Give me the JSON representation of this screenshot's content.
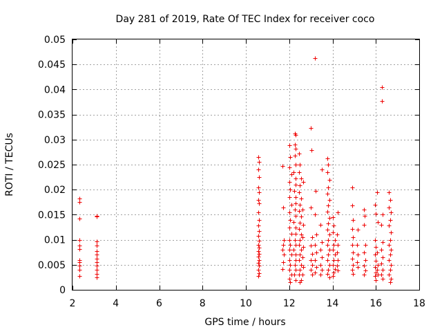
{
  "chart_data": {
    "type": "scatter",
    "title": "Day 281 of 2019, Rate Of TEC Index for receiver coco",
    "xlabel": "GPS time / hours",
    "ylabel": "ROTI / TECUs",
    "xlim": [
      2,
      18
    ],
    "ylim": [
      0,
      0.05
    ],
    "xticks": [
      2,
      4,
      6,
      8,
      10,
      12,
      14,
      16,
      18
    ],
    "xtick_labels": [
      "2",
      "4",
      "6",
      "8",
      "10",
      "12",
      "14",
      "16",
      "18"
    ],
    "yticks": [
      0,
      0.005,
      0.01,
      0.015,
      0.02,
      0.025,
      0.03,
      0.035,
      0.04,
      0.045,
      0.05
    ],
    "ytick_labels": [
      "0",
      "0.005",
      "0.01",
      "0.015",
      "0.02",
      "0.025",
      "0.03",
      "0.035",
      "0.04",
      "0.045",
      "0.05"
    ],
    "grid": true,
    "marker": "plus",
    "marker_color": "#ee0000",
    "series": [
      {
        "points": [
          [
            2.32,
            0.0182
          ],
          [
            2.32,
            0.0176
          ],
          [
            2.32,
            0.0142
          ],
          [
            2.32,
            0.01
          ],
          [
            2.32,
            0.0088
          ],
          [
            2.32,
            0.0082
          ],
          [
            2.32,
            0.006
          ],
          [
            2.32,
            0.0055
          ],
          [
            2.32,
            0.0048
          ],
          [
            2.32,
            0.004
          ],
          [
            2.32,
            0.0027
          ],
          [
            3.12,
            0.0148
          ],
          [
            3.12,
            0.0146
          ],
          [
            3.12,
            0.0096
          ],
          [
            3.12,
            0.0088
          ],
          [
            3.12,
            0.0078
          ],
          [
            3.12,
            0.007
          ],
          [
            3.12,
            0.0062
          ],
          [
            3.12,
            0.0055
          ],
          [
            3.12,
            0.0048
          ],
          [
            3.12,
            0.004
          ],
          [
            3.12,
            0.0032
          ],
          [
            3.12,
            0.0025
          ],
          [
            10.58,
            0.0265
          ],
          [
            10.6,
            0.0255
          ],
          [
            10.58,
            0.024
          ],
          [
            10.6,
            0.0225
          ],
          [
            10.58,
            0.0205
          ],
          [
            10.6,
            0.0195
          ],
          [
            10.58,
            0.018
          ],
          [
            10.6,
            0.0172
          ],
          [
            10.58,
            0.0155
          ],
          [
            10.6,
            0.014
          ],
          [
            10.58,
            0.0128
          ],
          [
            10.6,
            0.0118
          ],
          [
            10.58,
            0.0108
          ],
          [
            10.6,
            0.0098
          ],
          [
            10.58,
            0.009
          ],
          [
            10.6,
            0.0084
          ],
          [
            10.58,
            0.0078
          ],
          [
            10.6,
            0.0072
          ],
          [
            10.58,
            0.0066
          ],
          [
            10.6,
            0.006
          ],
          [
            10.58,
            0.0054
          ],
          [
            10.6,
            0.0048
          ],
          [
            10.58,
            0.004
          ],
          [
            10.6,
            0.0033
          ],
          [
            10.58,
            0.0028
          ],
          [
            11.7,
            0.0247
          ],
          [
            11.72,
            0.0165
          ],
          [
            11.75,
            0.01
          ],
          [
            11.72,
            0.009
          ],
          [
            11.7,
            0.008
          ],
          [
            11.75,
            0.007
          ],
          [
            11.72,
            0.0055
          ],
          [
            11.7,
            0.0042
          ],
          [
            12.0,
            0.0288
          ],
          [
            12.05,
            0.0265
          ],
          [
            12.0,
            0.0245
          ],
          [
            12.1,
            0.023
          ],
          [
            12.0,
            0.0215
          ],
          [
            12.05,
            0.02
          ],
          [
            12.0,
            0.0185
          ],
          [
            12.1,
            0.017
          ],
          [
            12.0,
            0.0155
          ],
          [
            12.05,
            0.014
          ],
          [
            12.0,
            0.0125
          ],
          [
            12.1,
            0.0112
          ],
          [
            12.0,
            0.01
          ],
          [
            12.05,
            0.009
          ],
          [
            12.0,
            0.008
          ],
          [
            12.1,
            0.007
          ],
          [
            12.0,
            0.006
          ],
          [
            12.05,
            0.005
          ],
          [
            12.0,
            0.004
          ],
          [
            12.1,
            0.003
          ],
          [
            12.0,
            0.0022
          ],
          [
            12.05,
            0.0015
          ],
          [
            12.25,
            0.0312
          ],
          [
            12.28,
            0.031
          ],
          [
            12.25,
            0.029
          ],
          [
            12.3,
            0.0282
          ],
          [
            12.25,
            0.0268
          ],
          [
            12.3,
            0.025
          ],
          [
            12.2,
            0.0235
          ],
          [
            12.28,
            0.0222
          ],
          [
            12.3,
            0.021
          ],
          [
            12.22,
            0.0198
          ],
          [
            12.28,
            0.0185
          ],
          [
            12.3,
            0.0172
          ],
          [
            12.25,
            0.016
          ],
          [
            12.3,
            0.0148
          ],
          [
            12.2,
            0.0136
          ],
          [
            12.28,
            0.0124
          ],
          [
            12.3,
            0.0112
          ],
          [
            12.25,
            0.01
          ],
          [
            12.3,
            0.009
          ],
          [
            12.2,
            0.008
          ],
          [
            12.28,
            0.007
          ],
          [
            12.3,
            0.006
          ],
          [
            12.25,
            0.005
          ],
          [
            12.3,
            0.004
          ],
          [
            12.22,
            0.003
          ],
          [
            12.28,
            0.002
          ],
          [
            12.45,
            0.0272
          ],
          [
            12.5,
            0.025
          ],
          [
            12.45,
            0.0235
          ],
          [
            12.55,
            0.0222
          ],
          [
            12.5,
            0.0208
          ],
          [
            12.45,
            0.0195
          ],
          [
            12.55,
            0.0182
          ],
          [
            12.5,
            0.017
          ],
          [
            12.45,
            0.0158
          ],
          [
            12.55,
            0.0146
          ],
          [
            12.5,
            0.0134
          ],
          [
            12.45,
            0.0122
          ],
          [
            12.55,
            0.011
          ],
          [
            12.5,
            0.01
          ],
          [
            12.45,
            0.009
          ],
          [
            12.55,
            0.008
          ],
          [
            12.5,
            0.007
          ],
          [
            12.45,
            0.006
          ],
          [
            12.55,
            0.005
          ],
          [
            12.5,
            0.004
          ],
          [
            12.45,
            0.003
          ],
          [
            12.55,
            0.002
          ],
          [
            12.5,
            0.0015
          ],
          [
            12.65,
            0.0215
          ],
          [
            12.62,
            0.016
          ],
          [
            12.65,
            0.013
          ],
          [
            12.62,
            0.0105
          ],
          [
            12.65,
            0.0085
          ],
          [
            12.62,
            0.0065
          ],
          [
            12.65,
            0.0045
          ],
          [
            12.62,
            0.003
          ],
          [
            13.0,
            0.0323
          ],
          [
            13.02,
            0.0279
          ],
          [
            13.0,
            0.0165
          ],
          [
            13.05,
            0.0105
          ],
          [
            13.0,
            0.0088
          ],
          [
            13.05,
            0.0072
          ],
          [
            13.0,
            0.006
          ],
          [
            13.05,
            0.005
          ],
          [
            13.0,
            0.004
          ],
          [
            13.05,
            0.003
          ],
          [
            13.2,
            0.0463
          ],
          [
            13.22,
            0.0198
          ],
          [
            13.2,
            0.015
          ],
          [
            13.25,
            0.011
          ],
          [
            13.2,
            0.009
          ],
          [
            13.25,
            0.0075
          ],
          [
            13.2,
            0.006
          ],
          [
            13.25,
            0.0045
          ],
          [
            13.2,
            0.0035
          ],
          [
            13.5,
            0.024
          ],
          [
            13.45,
            0.013
          ],
          [
            13.5,
            0.0095
          ],
          [
            13.45,
            0.008
          ],
          [
            13.5,
            0.0065
          ],
          [
            13.45,
            0.005
          ],
          [
            13.5,
            0.004
          ],
          [
            13.45,
            0.003
          ],
          [
            13.75,
            0.0262
          ],
          [
            13.8,
            0.025
          ],
          [
            13.75,
            0.0235
          ],
          [
            13.85,
            0.022
          ],
          [
            13.8,
            0.0205
          ],
          [
            13.75,
            0.0192
          ],
          [
            13.85,
            0.018
          ],
          [
            13.8,
            0.0168
          ],
          [
            13.75,
            0.0156
          ],
          [
            13.85,
            0.0144
          ],
          [
            13.8,
            0.0132
          ],
          [
            13.75,
            0.012
          ],
          [
            13.85,
            0.011
          ],
          [
            13.8,
            0.01
          ],
          [
            13.75,
            0.009
          ],
          [
            13.85,
            0.008
          ],
          [
            13.8,
            0.007
          ],
          [
            13.75,
            0.006
          ],
          [
            13.85,
            0.005
          ],
          [
            13.8,
            0.004
          ],
          [
            13.75,
            0.0032
          ],
          [
            13.85,
            0.0025
          ],
          [
            14.0,
            0.0145
          ],
          [
            14.05,
            0.0128
          ],
          [
            14.0,
            0.0115
          ],
          [
            14.1,
            0.01
          ],
          [
            14.05,
            0.009
          ],
          [
            14.0,
            0.008
          ],
          [
            14.1,
            0.007
          ],
          [
            14.05,
            0.006
          ],
          [
            14.0,
            0.005
          ],
          [
            14.1,
            0.0042
          ],
          [
            14.05,
            0.0035
          ],
          [
            14.0,
            0.0028
          ],
          [
            14.25,
            0.0155
          ],
          [
            14.22,
            0.011
          ],
          [
            14.25,
            0.009
          ],
          [
            14.22,
            0.0075
          ],
          [
            14.25,
            0.006
          ],
          [
            14.22,
            0.0048
          ],
          [
            14.25,
            0.0038
          ],
          [
            14.9,
            0.0205
          ],
          [
            14.92,
            0.0168
          ],
          [
            14.95,
            0.014
          ],
          [
            14.9,
            0.0122
          ],
          [
            14.95,
            0.0105
          ],
          [
            14.9,
            0.009
          ],
          [
            14.95,
            0.0075
          ],
          [
            14.9,
            0.0062
          ],
          [
            14.95,
            0.005
          ],
          [
            14.9,
            0.004
          ],
          [
            14.95,
            0.0032
          ],
          [
            15.15,
            0.012
          ],
          [
            15.12,
            0.009
          ],
          [
            15.15,
            0.007
          ],
          [
            15.12,
            0.0055
          ],
          [
            15.15,
            0.0045
          ],
          [
            15.45,
            0.016
          ],
          [
            15.48,
            0.0148
          ],
          [
            15.45,
            0.013
          ],
          [
            15.5,
            0.009
          ],
          [
            15.45,
            0.0075
          ],
          [
            15.5,
            0.006
          ],
          [
            15.45,
            0.0048
          ],
          [
            15.5,
            0.0038
          ],
          [
            15.45,
            0.003
          ],
          [
            15.95,
            0.017
          ],
          [
            16.0,
            0.0152
          ],
          [
            15.95,
            0.01
          ],
          [
            16.0,
            0.0085
          ],
          [
            15.95,
            0.007
          ],
          [
            16.0,
            0.0058
          ],
          [
            15.95,
            0.0045
          ],
          [
            16.0,
            0.0035
          ],
          [
            15.95,
            0.0028
          ],
          [
            16.0,
            0.002
          ],
          [
            16.05,
            0.0195
          ],
          [
            16.1,
            0.0135
          ],
          [
            16.05,
            0.0075
          ],
          [
            16.1,
            0.005
          ],
          [
            16.05,
            0.004
          ],
          [
            16.1,
            0.003
          ],
          [
            16.28,
            0.0405
          ],
          [
            16.28,
            0.0377
          ],
          [
            16.3,
            0.015
          ],
          [
            16.25,
            0.013
          ],
          [
            16.3,
            0.0095
          ],
          [
            16.25,
            0.008
          ],
          [
            16.3,
            0.0065
          ],
          [
            16.25,
            0.0052
          ],
          [
            16.3,
            0.004
          ],
          [
            16.25,
            0.003
          ],
          [
            16.3,
            0.0022
          ],
          [
            16.6,
            0.0195
          ],
          [
            16.65,
            0.018
          ],
          [
            16.6,
            0.0165
          ],
          [
            16.7,
            0.0155
          ],
          [
            16.65,
            0.014
          ],
          [
            16.6,
            0.0128
          ],
          [
            16.7,
            0.0115
          ],
          [
            16.65,
            0.01
          ],
          [
            16.6,
            0.009
          ],
          [
            16.7,
            0.008
          ],
          [
            16.65,
            0.007
          ],
          [
            16.6,
            0.006
          ],
          [
            16.7,
            0.005
          ],
          [
            16.65,
            0.004
          ],
          [
            16.6,
            0.003
          ],
          [
            16.7,
            0.0022
          ],
          [
            16.65,
            0.0015
          ]
        ]
      }
    ]
  }
}
